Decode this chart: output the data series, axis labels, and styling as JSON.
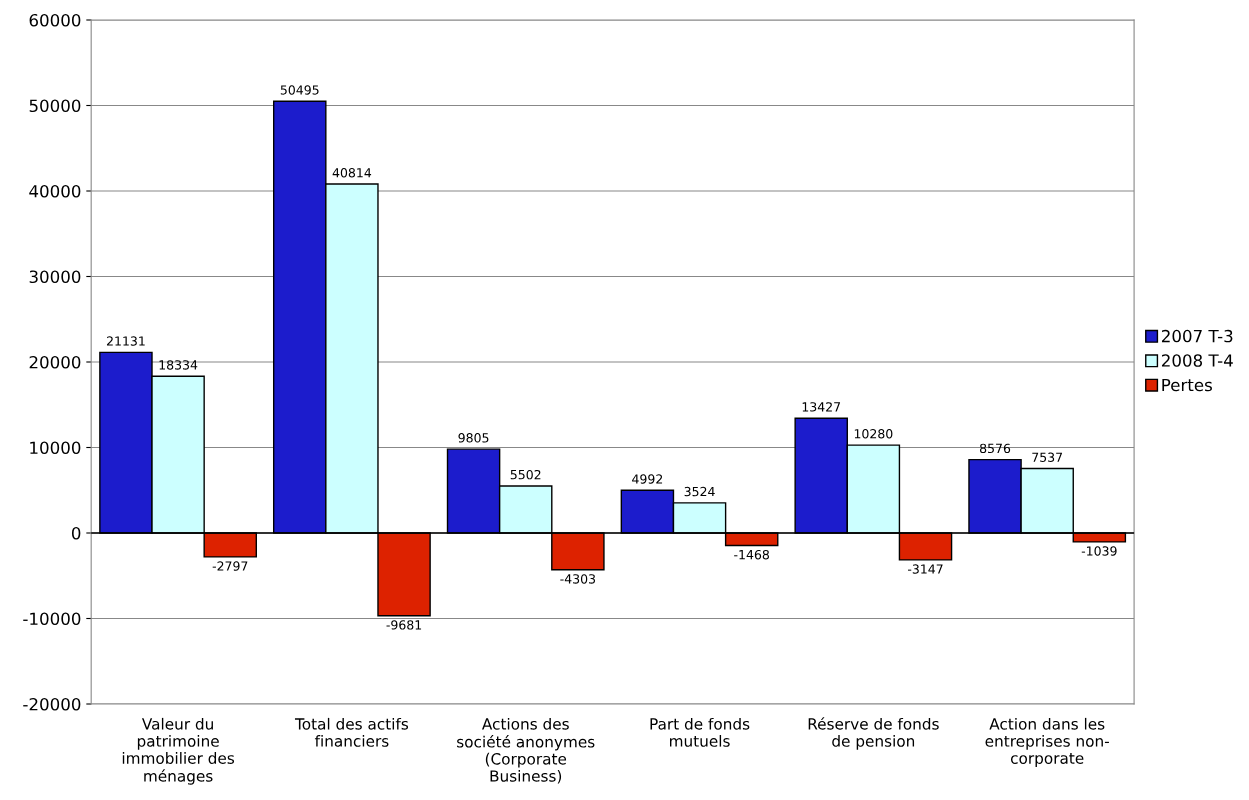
{
  "chart_data": {
    "type": "bar",
    "categories": [
      "Valeur du\npatrimoine\nimmobilier des\nménages",
      "Total des actifs\nfinanciers",
      "Actions des\nsociété anonymes\n(Corporate\nBusiness)",
      "Part de fonds\nmutuels",
      "Réserve de fonds\nde pension",
      "Action dans les\nentreprises non-\ncorporate"
    ],
    "series": [
      {
        "name": "2007 T-3",
        "color": "#1c1ccc",
        "values": [
          21131,
          50495,
          9805,
          4992,
          13427,
          8576
        ]
      },
      {
        "name": "2008 T-4",
        "color": "#ccffff",
        "values": [
          18334,
          40814,
          5502,
          3524,
          10280,
          7537
        ]
      },
      {
        "name": "Pertes",
        "color": "#dd2200",
        "values": [
          -2797,
          -9681,
          -4303,
          -1468,
          -3147,
          -1039
        ]
      }
    ],
    "ylim": [
      -20000,
      60000
    ],
    "yticks": [
      -20000,
      -10000,
      0,
      10000,
      20000,
      30000,
      40000,
      50000,
      60000
    ],
    "grid": "y",
    "legend": "right",
    "data_labels": true
  }
}
